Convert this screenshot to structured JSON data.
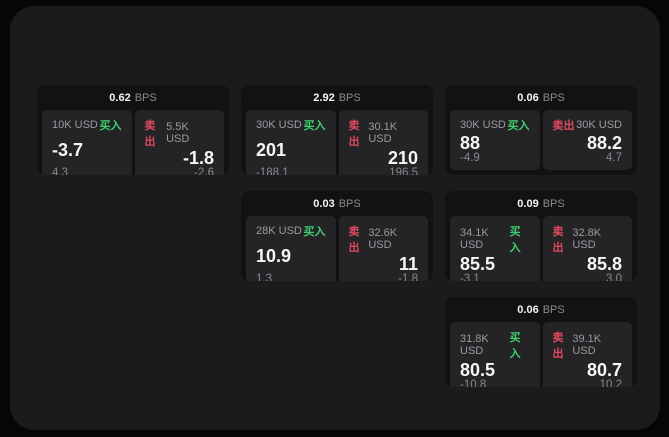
{
  "theme": {
    "bg": "#060606",
    "surface": "#1b1b1d",
    "card_bg": "#121214",
    "panel_bg": "#242427",
    "text_primary": "#f5f5f6",
    "text_secondary": "#9b9b9f",
    "text_dim": "#8a8a8e",
    "accent_green": "#3ecf6e",
    "accent_red": "#e0485e"
  },
  "labels": {
    "unit": "BPS",
    "buy": "买入",
    "sell": "卖出"
  },
  "cards": [
    {
      "bps": "0.62",
      "buy": {
        "amount": "10K USD",
        "price": "-3.7",
        "delta": "4.3"
      },
      "sell": {
        "amount": "5.5K USD",
        "price": "-1.8",
        "delta": "-2.6"
      }
    },
    {
      "bps": "2.92",
      "buy": {
        "amount": "30K USD",
        "price": "201",
        "delta": "-188.1"
      },
      "sell": {
        "amount": "30.1K USD",
        "price": "210",
        "delta": "196.5"
      }
    },
    {
      "bps": "0.06",
      "buy": {
        "amount": "30K USD",
        "price": "88",
        "delta": "-4.9"
      },
      "sell": {
        "amount": "30K USD",
        "price": "88.2",
        "delta": "4.7"
      }
    },
    {
      "bps": "0.03",
      "buy": {
        "amount": "28K USD",
        "price": "10.9",
        "delta": "1.3"
      },
      "sell": {
        "amount": "32.6K USD",
        "price": "11",
        "delta": "-1.8"
      }
    },
    {
      "bps": "0.09",
      "buy": {
        "amount": "34.1K USD",
        "price": "85.5",
        "delta": "-3.1"
      },
      "sell": {
        "amount": "32.8K USD",
        "price": "85.8",
        "delta": "3.0"
      }
    },
    {
      "bps": "0.06",
      "buy": {
        "amount": "31.8K USD",
        "price": "80.5",
        "delta": "-10.8"
      },
      "sell": {
        "amount": "39.1K USD",
        "price": "80.7",
        "delta": "10.2"
      }
    }
  ]
}
